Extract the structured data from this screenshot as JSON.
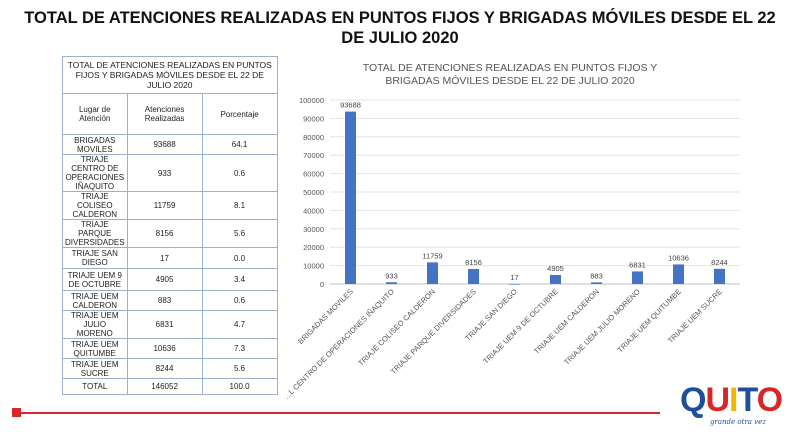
{
  "slide": {
    "title": "TOTAL DE ATENCIONES REALIZADAS EN PUNTOS FIJOS Y BRIGADAS MÓVILES DESDE EL 22 DE JULIO 2020"
  },
  "table": {
    "caption": "TOTAL DE ATENCIONES REALIZADAS EN PUNTOS FIJOS Y BRIGADAS MÓVILES DESDE EL 22 DE JULIO 2020",
    "headers": [
      "Lugar de Atención",
      "Atenciones Realizadas",
      "Porcentaje"
    ],
    "rows": [
      {
        "lugar": "BRIGADAS MOVILES",
        "atenciones": "93688",
        "porcentaje": "64.1"
      },
      {
        "lugar": "TRIAJE CENTRO DE OPERACIONES IÑAQUITO",
        "atenciones": "933",
        "porcentaje": "0.6"
      },
      {
        "lugar": "TRIAJE COLISEO CALDERON",
        "atenciones": "11759",
        "porcentaje": "8.1"
      },
      {
        "lugar": "TRIAJE PARQUE DIVERSIDADES",
        "atenciones": "8156",
        "porcentaje": "5.6"
      },
      {
        "lugar": "TRIAJE SAN DIEGO",
        "atenciones": "17",
        "porcentaje": "0.0"
      },
      {
        "lugar": "TRIAJE UEM 9 DE OCTUBRE",
        "atenciones": "4905",
        "porcentaje": "3.4"
      },
      {
        "lugar": "TRIAJE UEM CALDERON",
        "atenciones": "883",
        "porcentaje": "0.6"
      },
      {
        "lugar": "TRIAJE UEM JULIO MORENO",
        "atenciones": "6831",
        "porcentaje": "4.7"
      },
      {
        "lugar": "TRIAJE UEM QUITUMBE",
        "atenciones": "10636",
        "porcentaje": "7.3"
      },
      {
        "lugar": "TRIAJE UEM SUCRE",
        "atenciones": "8244",
        "porcentaje": "5.6"
      }
    ],
    "total": {
      "lugar": "TOTAL",
      "atenciones": "146052",
      "porcentaje": "100.0"
    }
  },
  "chart_data": {
    "type": "bar",
    "title": "TOTAL DE ATENCIONES REALIZADAS EN PUNTOS FIJOS Y BRIGADAS MÓVILES DESDE EL 22 DE JULIO 2020",
    "categories": [
      "BRIGADAS MOVILES",
      "...L CENTRO DE OPERACIONES IÑAQUITO",
      "TRIAJE COLISEO CALDERON",
      "TRIAJE PARQUE DIVERSIDADES",
      "TRIAJE SAN DIEGO",
      "TRIAJE UEM 9 DE OCTUBRE",
      "TRIAJE UEM CALDERON",
      "TRIAJE UEM JULIO MORENO",
      "TRIAJE UEM QUITUMBE",
      "TRIAJE UEM SUCRE"
    ],
    "values": [
      93688,
      933,
      11759,
      8156,
      17,
      4905,
      883,
      6831,
      10636,
      8244
    ],
    "ylim": [
      0,
      100000
    ],
    "yticks": [
      0,
      10000,
      20000,
      30000,
      40000,
      50000,
      60000,
      70000,
      80000,
      90000,
      100000
    ],
    "grid": true,
    "legend": "none",
    "bar_color": "#4472c4"
  },
  "logo": {
    "word": "QUITO",
    "tagline": "grande otra vez",
    "colors": {
      "q": "#1f4f9a",
      "u": "#d9262b",
      "i": "#f2b705",
      "t": "#1f4f9a",
      "o": "#d9262b"
    }
  }
}
